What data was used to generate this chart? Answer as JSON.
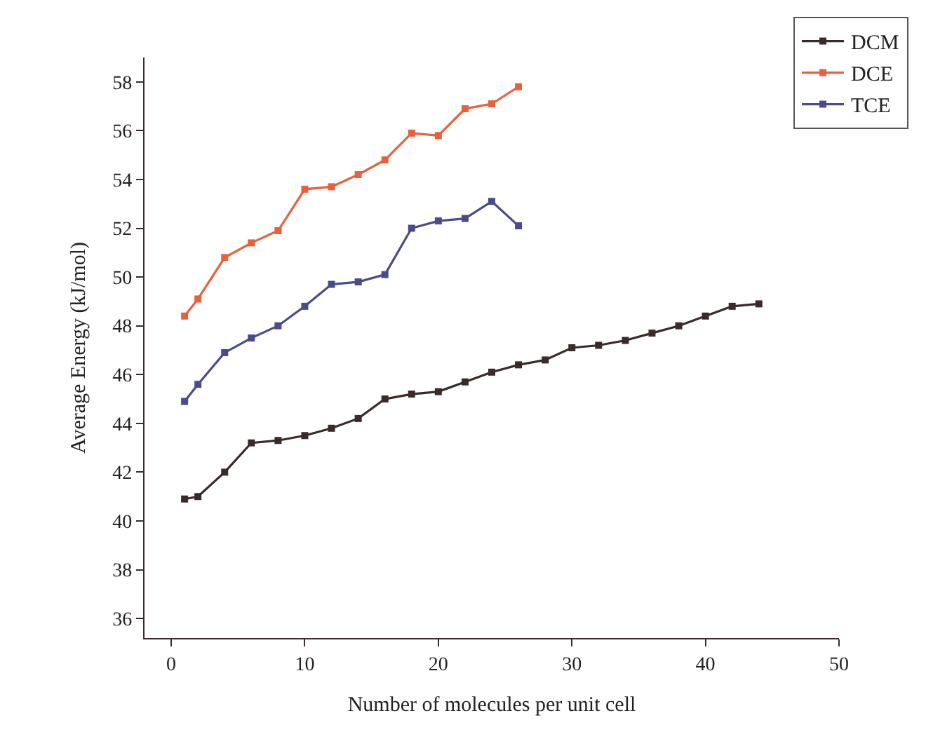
{
  "chart_data": {
    "type": "line",
    "xlabel": "Number of molecules per unit cell",
    "ylabel": "Average Energy (kJ/mol)",
    "xlim": [
      -2,
      50
    ],
    "ylim": [
      35.2,
      59
    ],
    "xticks": [
      0,
      10,
      20,
      30,
      40,
      50
    ],
    "yticks": [
      36,
      38,
      40,
      42,
      44,
      46,
      48,
      50,
      52,
      54,
      56,
      58
    ],
    "legend": "top right",
    "marker": "square",
    "line_style": "solid",
    "series": [
      {
        "name": "DCM",
        "color": "#3a2a2a",
        "x": [
          1,
          2,
          4,
          6,
          8,
          10,
          12,
          14,
          16,
          18,
          20,
          22,
          24,
          26,
          28,
          30,
          32,
          34,
          36,
          38,
          40,
          42,
          44
        ],
        "values": [
          40.9,
          41.0,
          42.0,
          43.2,
          43.3,
          43.5,
          43.8,
          44.2,
          45.0,
          45.2,
          45.3,
          45.7,
          46.1,
          46.4,
          46.6,
          47.1,
          47.2,
          47.4,
          47.7,
          48.0,
          48.4,
          48.8,
          48.9
        ]
      },
      {
        "name": "DCE",
        "color": "#e8603c",
        "x": [
          1,
          2,
          4,
          6,
          8,
          10,
          12,
          14,
          16,
          18,
          20,
          22,
          24,
          26
        ],
        "values": [
          48.4,
          49.1,
          50.8,
          51.4,
          51.9,
          53.6,
          53.7,
          54.2,
          54.8,
          55.9,
          55.8,
          56.9,
          57.1,
          57.8
        ]
      },
      {
        "name": "TCE",
        "color": "#4a4a8c",
        "x": [
          1,
          2,
          4,
          6,
          8,
          10,
          12,
          14,
          16,
          18,
          20,
          22,
          24,
          26
        ],
        "values": [
          44.9,
          45.6,
          46.9,
          47.5,
          48.0,
          48.8,
          49.7,
          49.8,
          50.1,
          52.0,
          52.3,
          52.4,
          53.1,
          52.1
        ]
      }
    ]
  }
}
